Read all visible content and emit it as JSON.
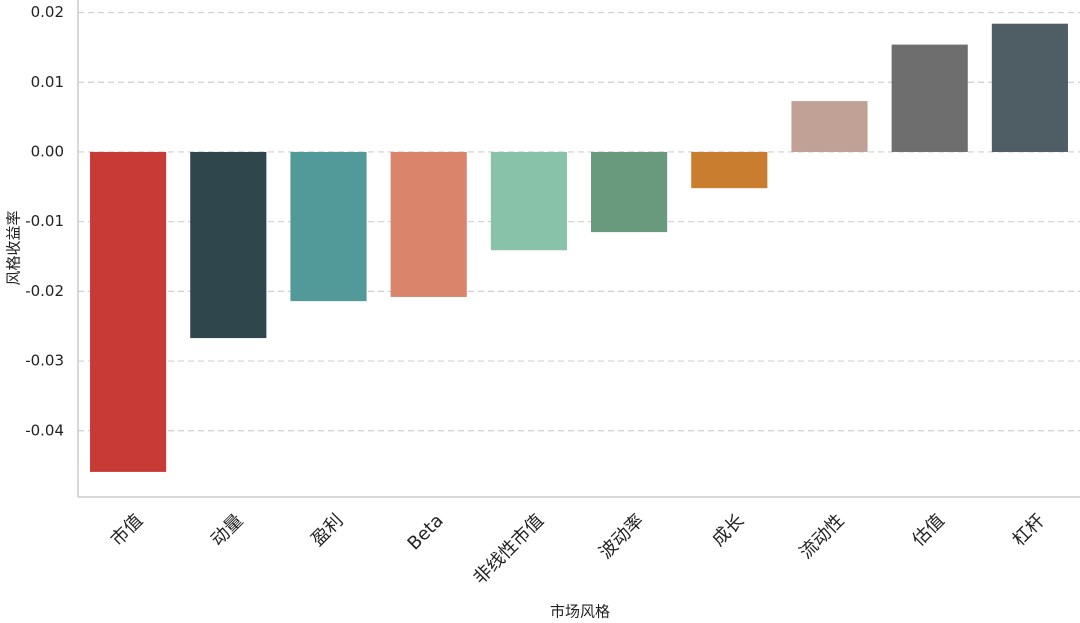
{
  "chart_data": {
    "type": "bar",
    "categories": [
      "市值",
      "动量",
      "盈利",
      "Beta",
      "非线性市值",
      "波动率",
      "成长",
      "流动性",
      "估值",
      "杠杆"
    ],
    "values": [
      -0.0459,
      -0.0267,
      -0.0214,
      -0.0208,
      -0.0141,
      -0.0115,
      -0.0052,
      0.0073,
      0.0154,
      0.0184
    ],
    "colors": [
      "#c73a36",
      "#2f464d",
      "#52999a",
      "#d9846b",
      "#88c2a8",
      "#6a9a7e",
      "#c97d2e",
      "#c1a195",
      "#6e6e6e",
      "#4e5e64"
    ],
    "x_label": "市场风格",
    "y_label": "风格收益率",
    "ylim": [
      -0.0495,
      0.0218
    ],
    "yticks": [
      -0.04,
      -0.03,
      -0.02,
      -0.01,
      {
        "value": 0,
        "label": "0.00"
      },
      0.01,
      0.02
    ],
    "grid": true
  }
}
